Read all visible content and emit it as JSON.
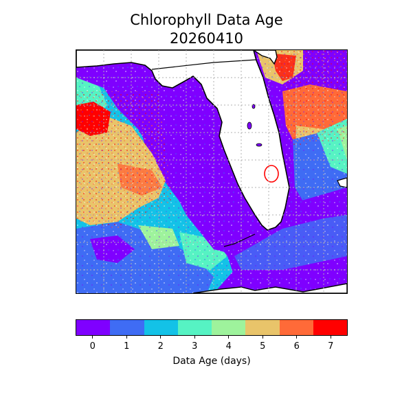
{
  "title": {
    "line1": "Chlorophyll Data Age",
    "line2": "20260410"
  },
  "colorbar": {
    "label": "Data Age (days)",
    "ticks": [
      "0",
      "1",
      "2",
      "3",
      "4",
      "5",
      "6",
      "7"
    ],
    "colors": [
      "#7f00ff",
      "#3f6cf4",
      "#13c2e7",
      "#56f3c3",
      "#9ef39c",
      "#e9c46a",
      "#ff6a38",
      "#ff0000"
    ]
  },
  "map": {
    "land_color": "#ffffff",
    "coast_color": "#000000",
    "grid_color": "#b0b0b0",
    "grid_style": "dotted"
  }
}
